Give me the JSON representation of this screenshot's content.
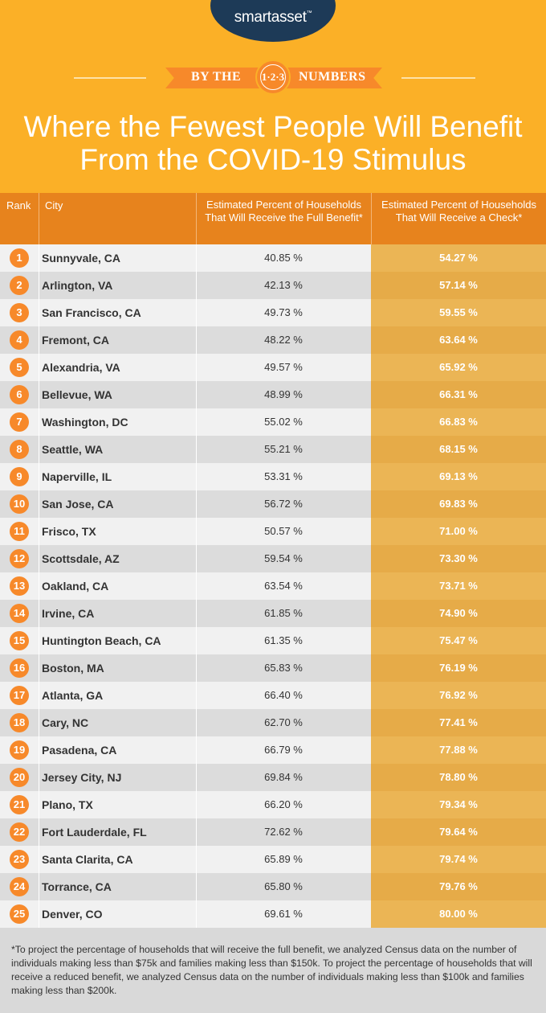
{
  "brand": {
    "name": "smartasset",
    "trademark": "™"
  },
  "banner": {
    "left": "BY THE",
    "badge": "1·2·3",
    "right": "NUMBERS"
  },
  "title_line1": "Where the Fewest People Will Benefit",
  "title_line2": "From the COVID-19 Stimulus",
  "colors": {
    "header_bg": "#fbb027",
    "table_header_bg": "#e7831d",
    "accent": "#f7892a",
    "logo_bg": "#1d3a57"
  },
  "chart_data": {
    "type": "table",
    "title": "Where the Fewest People Will Benefit From the COVID-19 Stimulus",
    "columns": [
      "Rank",
      "City",
      "Estimated Percent of Households That Will Receive the Full Benefit*",
      "Estimated Percent of Households That Will Receive a Check*"
    ],
    "rows": [
      {
        "rank": "1",
        "city": "Sunnyvale, CA",
        "full": "40.85 %",
        "check": "54.27 %"
      },
      {
        "rank": "2",
        "city": "Arlington, VA",
        "full": "42.13 %",
        "check": "57.14 %"
      },
      {
        "rank": "3",
        "city": "San Francisco, CA",
        "full": "49.73 %",
        "check": "59.55 %"
      },
      {
        "rank": "4",
        "city": "Fremont, CA",
        "full": "48.22 %",
        "check": "63.64 %"
      },
      {
        "rank": "5",
        "city": "Alexandria, VA",
        "full": "49.57 %",
        "check": "65.92 %"
      },
      {
        "rank": "6",
        "city": "Bellevue, WA",
        "full": "48.99 %",
        "check": "66.31 %"
      },
      {
        "rank": "7",
        "city": "Washington, DC",
        "full": "55.02 %",
        "check": "66.83 %"
      },
      {
        "rank": "8",
        "city": "Seattle, WA",
        "full": "55.21 %",
        "check": "68.15 %"
      },
      {
        "rank": "9",
        "city": "Naperville, IL",
        "full": "53.31 %",
        "check": "69.13 %"
      },
      {
        "rank": "10",
        "city": "San Jose, CA",
        "full": "56.72 %",
        "check": "69.83 %"
      },
      {
        "rank": "11",
        "city": "Frisco, TX",
        "full": "50.57 %",
        "check": "71.00 %"
      },
      {
        "rank": "12",
        "city": "Scottsdale, AZ",
        "full": "59.54 %",
        "check": "73.30 %"
      },
      {
        "rank": "13",
        "city": "Oakland, CA",
        "full": "63.54 %",
        "check": "73.71 %"
      },
      {
        "rank": "14",
        "city": "Irvine, CA",
        "full": "61.85 %",
        "check": "74.90 %"
      },
      {
        "rank": "15",
        "city": "Huntington Beach, CA",
        "full": "61.35 %",
        "check": "75.47 %"
      },
      {
        "rank": "16",
        "city": "Boston, MA",
        "full": "65.83 %",
        "check": "76.19 %"
      },
      {
        "rank": "17",
        "city": "Atlanta, GA",
        "full": "66.40 %",
        "check": "76.92 %"
      },
      {
        "rank": "18",
        "city": "Cary, NC",
        "full": "62.70 %",
        "check": "77.41 %"
      },
      {
        "rank": "19",
        "city": "Pasadena, CA",
        "full": "66.79 %",
        "check": "77.88 %"
      },
      {
        "rank": "20",
        "city": "Jersey City, NJ",
        "full": "69.84 %",
        "check": "78.80 %"
      },
      {
        "rank": "21",
        "city": "Plano, TX",
        "full": "66.20 %",
        "check": "79.34 %"
      },
      {
        "rank": "22",
        "city": "Fort Lauderdale, FL",
        "full": "72.62 %",
        "check": "79.64 %"
      },
      {
        "rank": "23",
        "city": "Santa Clarita, CA",
        "full": "65.89 %",
        "check": "79.74 %"
      },
      {
        "rank": "24",
        "city": "Torrance, CA",
        "full": "65.80 %",
        "check": "79.76 %"
      },
      {
        "rank": "25",
        "city": "Denver, CO",
        "full": "69.61 %",
        "check": "80.00 %"
      }
    ]
  },
  "footnote": "*To project the percentage of households that will receive the full benefit, we analyzed Census data on the number of individuals making less than $75k and families making less than $150k. To project the percentage of households that will receive a reduced benefit, we analyzed Census data on the number of individuals making less than $100k and families making less than $200k."
}
